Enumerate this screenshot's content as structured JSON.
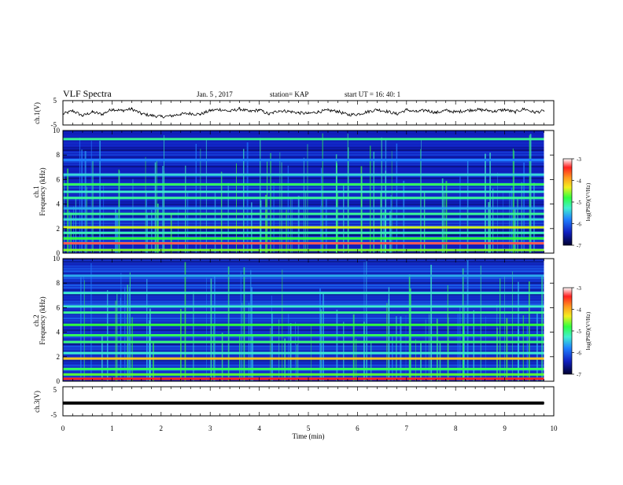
{
  "header": {
    "title": "VLF Spectra",
    "date": "Jan. 5 , 2017",
    "station": "station= KAP",
    "start_time": "start UT = 16: 40: 1"
  },
  "colorbar": {
    "label": "log(PSD)(V²/Hz)",
    "ticks": [
      "-3",
      "-4",
      "-5",
      "-6",
      "-7"
    ],
    "colors": [
      "#ffffff",
      "#ff2020",
      "#ff9a20",
      "#f4ef20",
      "#30ff40",
      "#40f0d0",
      "#2080ff",
      "#1020c0",
      "#000030"
    ]
  },
  "chart_data": [
    {
      "type": "line",
      "panel": "ch1-waveform",
      "ylabel": "ch.1(V)",
      "yticks": [
        "5",
        "-5"
      ],
      "ylim": [
        -5,
        5
      ],
      "xlim": [
        0,
        10
      ],
      "x": [
        0.0,
        0.2,
        0.4,
        0.6,
        0.8,
        1.0,
        1.2,
        1.4,
        1.6,
        1.8,
        2.0,
        2.2,
        2.4,
        2.6,
        2.8,
        3.0,
        3.2,
        3.4,
        3.6,
        3.8,
        4.0,
        4.2,
        4.4,
        4.6,
        4.8,
        5.0,
        5.2,
        5.4,
        5.6,
        5.8,
        6.0,
        6.2,
        6.4,
        6.6,
        6.8,
        7.0,
        7.2,
        7.4,
        7.6,
        7.8,
        8.0,
        8.2,
        8.4,
        8.6,
        8.8,
        9.0,
        9.2,
        9.4,
        9.6,
        9.8
      ],
      "y": [
        -0.5,
        0.8,
        -1.2,
        0.3,
        -0.6,
        1.5,
        0.9,
        1.6,
        -0.4,
        -1.1,
        -1.6,
        -1.3,
        -0.5,
        -0.3,
        -0.6,
        0.9,
        1.4,
        0.6,
        1.6,
        0.5,
        1.2,
        -0.6,
        0.9,
        0.6,
        0.0,
        -0.3,
        0.4,
        1.0,
        0.6,
        -0.8,
        -0.6,
        0.4,
        1.3,
        0.6,
        -0.5,
        1.2,
        0.4,
        1.1,
        0.0,
        1.0,
        0.3,
        0.9,
        1.3,
        1.1,
        0.6,
        1.3,
        0.3,
        1.6,
        0.2,
        0.7
      ]
    },
    {
      "type": "heatmap",
      "panel": "ch1-spectrogram",
      "ylabel": "ch.1",
      "ylabel2": "Frequency (kHz)",
      "yticks": [
        "10",
        "8",
        "6",
        "4",
        "2",
        "0"
      ],
      "ylim": [
        0,
        10
      ],
      "xlim": [
        0,
        10
      ],
      "z_range": [
        -7,
        -3
      ],
      "background_level": -6.4,
      "bands_khz": [
        {
          "f": 0.25,
          "level": -4.6
        },
        {
          "f": 0.8,
          "level": -3.3
        },
        {
          "f": 1.2,
          "level": -4.8
        },
        {
          "f": 1.65,
          "level": -5.2
        },
        {
          "f": 2.1,
          "level": -4.4
        },
        {
          "f": 2.75,
          "level": -5.4
        },
        {
          "f": 3.2,
          "level": -5.1
        },
        {
          "f": 3.65,
          "level": -5.6
        },
        {
          "f": 4.5,
          "level": -5.1
        },
        {
          "f": 5.0,
          "level": -5.3
        },
        {
          "f": 5.6,
          "level": -4.9
        },
        {
          "f": 6.4,
          "level": -5.4
        },
        {
          "f": 7.6,
          "level": -5.8
        },
        {
          "f": 9.3,
          "level": -5.1
        }
      ]
    },
    {
      "type": "heatmap",
      "panel": "ch2-spectrogram",
      "ylabel": "ch.2",
      "ylabel2": "Frequency (kHz)",
      "yticks": [
        "10",
        "8",
        "6",
        "4",
        "2",
        "0"
      ],
      "ylim": [
        0,
        10
      ],
      "xlim": [
        0,
        10
      ],
      "z_range": [
        -7,
        -3
      ],
      "background_level": -6.3,
      "bands_khz": [
        {
          "f": 0.2,
          "level": -3.4
        },
        {
          "f": 0.55,
          "level": -4.7
        },
        {
          "f": 1.0,
          "level": -4.9
        },
        {
          "f": 1.85,
          "level": -4.1
        },
        {
          "f": 2.3,
          "level": -5.3
        },
        {
          "f": 3.2,
          "level": -5.0
        },
        {
          "f": 3.75,
          "level": -4.9
        },
        {
          "f": 4.6,
          "level": -4.8
        },
        {
          "f": 5.6,
          "level": -5.1
        },
        {
          "f": 6.1,
          "level": -5.3
        },
        {
          "f": 7.2,
          "level": -5.3
        },
        {
          "f": 8.6,
          "level": -5.6
        }
      ]
    },
    {
      "type": "line",
      "panel": "ch3-waveform",
      "ylabel": "ch.3(V)",
      "yticks": [
        "5",
        "-5"
      ],
      "ylim": [
        -5,
        5
      ],
      "xlim": [
        0,
        10
      ],
      "x": [
        0,
        9.8
      ],
      "y": [
        -0.6,
        -0.6
      ]
    }
  ],
  "xaxis": {
    "label": "Time (min)",
    "ticks": [
      "0",
      "1",
      "2",
      "3",
      "4",
      "5",
      "6",
      "7",
      "8",
      "9",
      "10"
    ]
  }
}
